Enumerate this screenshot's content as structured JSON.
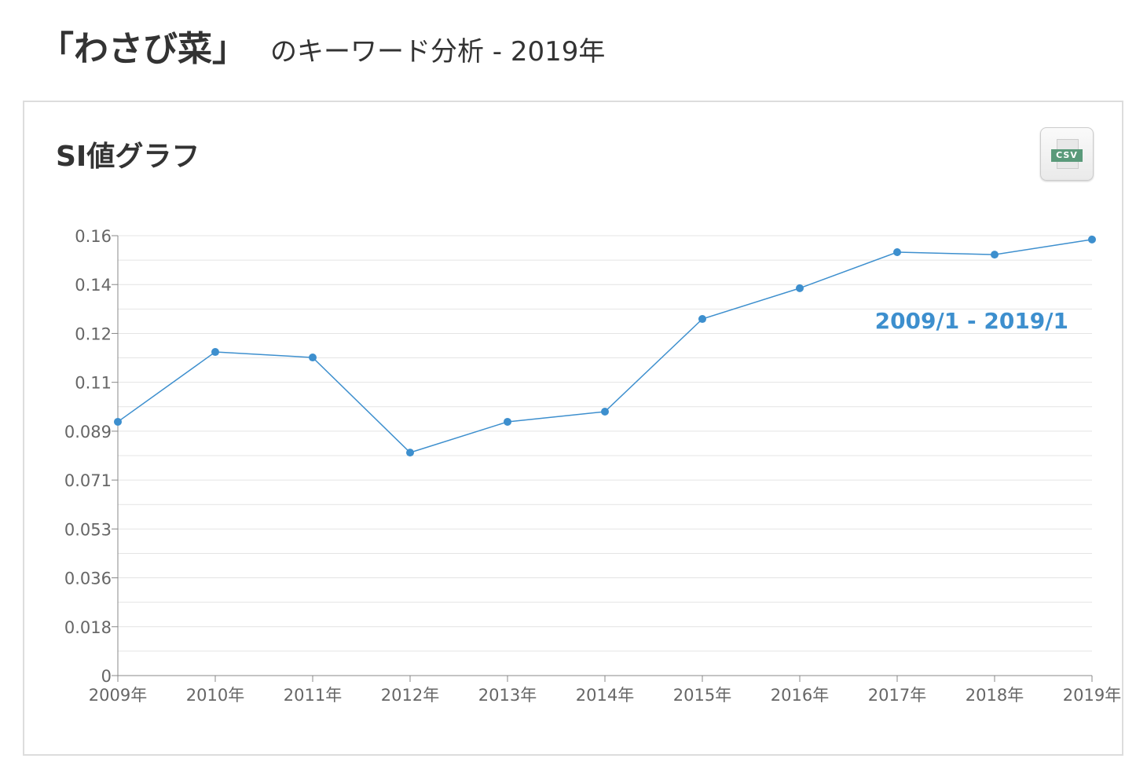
{
  "header": {
    "keyword": "「わさび菜」",
    "subtitle": "のキーワード分析 - 2019年"
  },
  "panel": {
    "title": "SI値グラフ",
    "csv_label": "CSV"
  },
  "chart_data": {
    "type": "line",
    "title": "SI値グラフ",
    "annotation": "2009/1 - 2019/1",
    "x": [
      "2009年",
      "2010年",
      "2011年",
      "2012年",
      "2013年",
      "2014年",
      "2015年",
      "2016年",
      "2017年",
      "2018年",
      "2019年"
    ],
    "values": [
      0.0923,
      0.1177,
      0.1157,
      0.0811,
      0.0923,
      0.096,
      0.1297,
      0.1409,
      0.154,
      0.1531,
      0.1586
    ],
    "yticks": [
      "0",
      "0.018",
      "0.036",
      "0.053",
      "0.071",
      "0.089",
      "0.11",
      "0.12",
      "0.14",
      "0.16"
    ],
    "ylim": [
      0,
      0.16
    ],
    "grid": true,
    "color": "#3d8fce"
  }
}
